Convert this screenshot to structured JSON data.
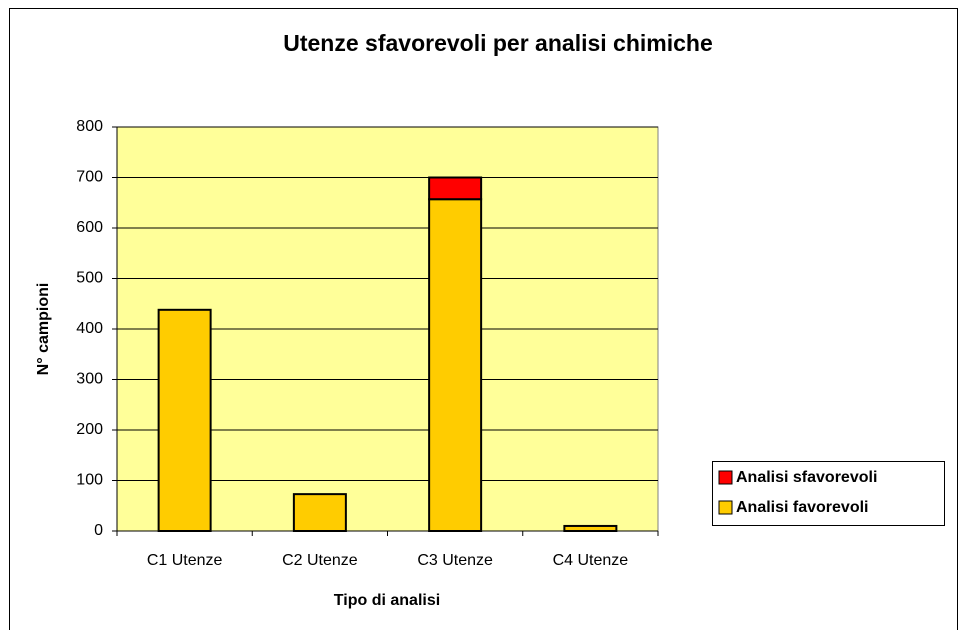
{
  "chart_data": {
    "type": "stacked_bar",
    "title": "Utenze sfavorevoli per analisi chimiche",
    "x_label": "Tipo di analisi",
    "y_label": "N° campioni",
    "categories": [
      "C1 Utenze",
      "C2 Utenze",
      "C3 Utenze",
      "C4 Utenze"
    ],
    "series": [
      {
        "name": "Analisi favorevoli",
        "color": "#ffcc00",
        "values": [
          438,
          73,
          657,
          10
        ]
      },
      {
        "name": "Analisi sfavorevoli",
        "color": "#ff0000",
        "values": [
          0,
          0,
          43,
          0
        ]
      }
    ],
    "ylim": [
      0,
      800
    ],
    "yticks": [
      0,
      100,
      200,
      300,
      400,
      500,
      600,
      700,
      800
    ],
    "grid": true,
    "legend": "right",
    "plot_background": "#ffff99"
  }
}
